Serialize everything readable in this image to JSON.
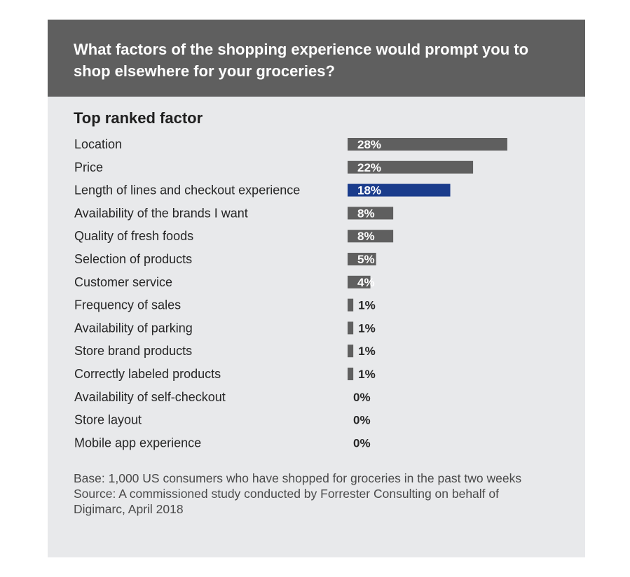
{
  "chart_data": {
    "type": "bar",
    "orientation": "horizontal",
    "title": "What factors of the shopping experience would prompt you to shop elsewhere for your groceries?",
    "subtitle": "Top ranked factor",
    "categories": [
      "Location",
      "Price",
      "Length of lines and checkout experience",
      "Availability of the brands I want",
      "Quality of fresh foods",
      "Selection of products",
      "Customer service",
      "Frequency of sales",
      "Availability of parking",
      "Store brand products",
      "Correctly labeled products",
      "Availability of self-checkout",
      "Store layout",
      "Mobile app experience"
    ],
    "values": [
      28,
      22,
      18,
      8,
      8,
      5,
      4,
      1,
      1,
      1,
      1,
      0,
      0,
      0
    ],
    "value_labels": [
      "28%",
      "22%",
      "18%",
      "8%",
      "8%",
      "5%",
      "4%",
      "1%",
      "1%",
      "1%",
      "1%",
      "0%",
      "0%",
      "0%"
    ],
    "highlight_index": 2,
    "colors": {
      "bar": "#5f5f5f",
      "highlight": "#1a3c8c",
      "header": "#5f5f5f",
      "background": "#e8e9eb"
    },
    "legend": "none",
    "grid": false
  },
  "footnote": {
    "base": "Base: 1,000 US consumers who have shopped for groceries in the past two weeks",
    "source": "Source: A commissioned study conducted by Forrester Consulting on behalf of Digimarc, April 2018"
  }
}
